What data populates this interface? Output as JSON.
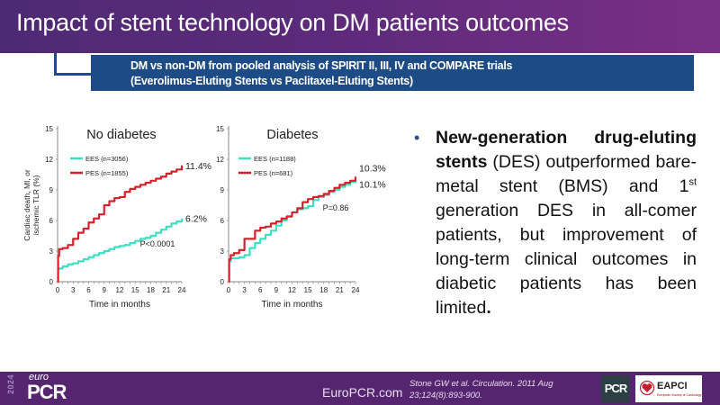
{
  "header": {
    "title": "Impact of stent technology on DM patients outcomes",
    "subtitle_line1": "DM vs non-DM from pooled analysis of SPIRIT II, III, IV and COMPARE trials",
    "subtitle_line2": "(Everolimus-Eluting Stents vs Paclitaxel-Eluting Stents)"
  },
  "chart_data": [
    {
      "type": "line",
      "title": "No diabetes",
      "xlabel": "Time in months",
      "ylabel": "Cardiac death, MI, or ischemic TLR (%)",
      "xlim": [
        0,
        24
      ],
      "ylim": [
        0,
        15
      ],
      "xticks": [
        0,
        3,
        6,
        9,
        12,
        15,
        18,
        21,
        24
      ],
      "yticks": [
        0,
        3,
        6,
        9,
        12,
        15
      ],
      "legend_position": "top-left",
      "annotation": "P<0.0001",
      "series": [
        {
          "name": "EES (n=3056)",
          "color": "#3de0c0",
          "end_label": "6.2%",
          "x": [
            0,
            0.1,
            0.3,
            1,
            2,
            3,
            4,
            5,
            6,
            7,
            8,
            9,
            10,
            11,
            12,
            13,
            14,
            15,
            16,
            17,
            18,
            19,
            20,
            21,
            22,
            23,
            24
          ],
          "y": [
            0,
            1.2,
            1.3,
            1.5,
            1.7,
            1.8,
            2.0,
            2.2,
            2.4,
            2.6,
            2.8,
            3.0,
            3.2,
            3.4,
            3.5,
            3.6,
            3.8,
            4.0,
            4.2,
            4.3,
            4.5,
            4.8,
            5.1,
            5.4,
            5.7,
            5.9,
            6.2
          ]
        },
        {
          "name": "PES (n=1855)",
          "color": "#d8202a",
          "end_label": "11.4%",
          "x": [
            0,
            0.1,
            0.3,
            1,
            2,
            3,
            4,
            5,
            6,
            7,
            8,
            9,
            10,
            11,
            12,
            13,
            14,
            15,
            16,
            17,
            18,
            19,
            20,
            21,
            22,
            23,
            24
          ],
          "y": [
            0,
            2.5,
            3.2,
            3.3,
            3.6,
            4.2,
            4.8,
            5.2,
            5.8,
            6.2,
            6.6,
            7.5,
            7.9,
            8.2,
            8.3,
            8.8,
            9.1,
            9.3,
            9.5,
            9.7,
            9.9,
            10.1,
            10.3,
            10.6,
            10.8,
            11.0,
            11.4
          ]
        }
      ]
    },
    {
      "type": "line",
      "title": "Diabetes",
      "xlabel": "Time in months",
      "ylabel": "",
      "xlim": [
        0,
        24
      ],
      "ylim": [
        0,
        15
      ],
      "xticks": [
        0,
        3,
        6,
        9,
        12,
        15,
        18,
        21,
        24
      ],
      "yticks": [
        0,
        3,
        6,
        9,
        12,
        15
      ],
      "legend_position": "top-left",
      "annotation": "P=0.86",
      "series": [
        {
          "name": "EES (n=1188)",
          "color": "#3de0c0",
          "end_label": "10.1%",
          "x": [
            0,
            0.1,
            0.4,
            1,
            2,
            3,
            4,
            5,
            6,
            7,
            8,
            9,
            10,
            11,
            12,
            13,
            14,
            15,
            16,
            17,
            18,
            19,
            20,
            21,
            22,
            23,
            24
          ],
          "y": [
            0,
            2.0,
            2.3,
            2.3,
            2.4,
            2.6,
            3.3,
            3.8,
            4.2,
            4.6,
            5.0,
            5.5,
            6.0,
            6.4,
            6.8,
            7.1,
            7.2,
            7.4,
            8.0,
            8.3,
            8.5,
            8.8,
            9.0,
            9.3,
            9.5,
            9.8,
            10.1
          ]
        },
        {
          "name": "PES (n=681)",
          "color": "#d8202a",
          "end_label": "10.3%",
          "x": [
            0,
            0.1,
            0.4,
            1,
            2,
            3,
            4,
            5,
            6,
            7,
            8,
            9,
            10,
            11,
            12,
            13,
            14,
            15,
            16,
            17,
            18,
            19,
            20,
            21,
            22,
            23,
            24
          ],
          "y": [
            0,
            2.2,
            2.6,
            2.8,
            3.1,
            4.2,
            4.2,
            5.0,
            5.3,
            5.4,
            5.7,
            5.9,
            6.2,
            6.4,
            6.8,
            7.2,
            7.8,
            8.1,
            8.3,
            8.4,
            8.6,
            8.9,
            9.2,
            9.5,
            9.7,
            9.9,
            10.3
          ]
        }
      ]
    }
  ],
  "bullet": {
    "bold_part": "New-generation drug-eluting stents",
    "text_before_sup": " (DES) outperformed bare-metal stent (BMS) and 1",
    "sup": "st",
    "text_after_sup": " generation DES in all-comer patients, but improvement of long-term clinical outcomes in diabetic patients has been limited",
    "end_bold": "."
  },
  "footer": {
    "year": "2024",
    "euro": "euro",
    "pcr": "PCR",
    "site": "EuroPCR.com",
    "citation": "Stone GW et al. Circulation. 2011 Aug 23;124(8):893-900.",
    "pcr_logo": "PCR",
    "eapci_logo": "EAPCI",
    "eapci_sub": "European Society of Cardiology"
  },
  "colors": {
    "title_bar": "#5c2a7a",
    "subtitle_box": "#1d4b86",
    "footer": "#55266f",
    "ees": "#3de0c0",
    "pes": "#d8202a"
  }
}
